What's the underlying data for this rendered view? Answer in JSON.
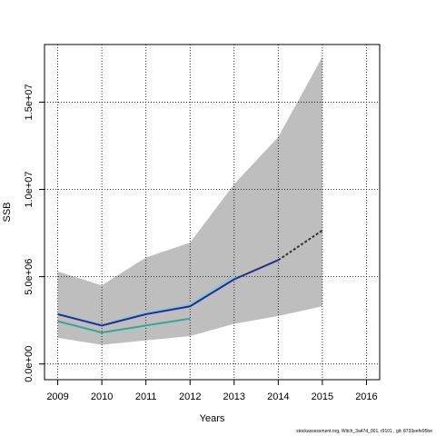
{
  "chart_data": {
    "type": "line",
    "title": "",
    "xlabel": "Years",
    "ylabel": "SSB",
    "xlim": [
      2008.7,
      2016.3
    ],
    "ylim": [
      -900000,
      18300000
    ],
    "x_ticks": [
      2009,
      2010,
      2011,
      2012,
      2013,
      2014,
      2015,
      2016
    ],
    "x_tick_labels": [
      "2009",
      "2010",
      "2011",
      "2012",
      "2013",
      "2014",
      "2015",
      "2016"
    ],
    "y_ticks": [
      0,
      5000000,
      10000000,
      15000000
    ],
    "y_tick_labels": [
      "0.0e+00",
      "5.0e+06",
      "1.0e+07",
      "1.5e+07"
    ],
    "grid": true,
    "colors": {
      "band": "#bebebe",
      "light_blue": "#7ec8e3",
      "green": "#3aa597",
      "navy": "#2a2a8a",
      "forecast": "#333333"
    },
    "band": {
      "x": [
        2009,
        2010,
        2011,
        2012,
        2013,
        2014,
        2015
      ],
      "upper": [
        5300000,
        4500000,
        6100000,
        6950000,
        10300000,
        13000000,
        17600000
      ],
      "lower": [
        1500000,
        1100000,
        1350000,
        1600000,
        2300000,
        2750000,
        3300000
      ]
    },
    "series": [
      {
        "x": [
          2009,
          2010,
          2011,
          2012,
          2013
        ],
        "values": [
          2900000,
          2250000,
          2950000,
          3400000,
          5050000
        ],
        "color_key": "light_blue",
        "dashed": false,
        "width": 2
      },
      {
        "x": [
          2009,
          2010,
          2011,
          2012
        ],
        "values": [
          2450000,
          1800000,
          2200000,
          2600000
        ],
        "color_key": "green",
        "dashed": false,
        "width": 2
      },
      {
        "x": [
          2009,
          2010,
          2011,
          2012,
          2013,
          2014
        ],
        "values": [
          2850000,
          2200000,
          2850000,
          3300000,
          4850000,
          5950000
        ],
        "color_key": "navy",
        "dashed": false,
        "width": 2
      },
      {
        "x": [
          2014,
          2015
        ],
        "values": [
          5950000,
          7650000
        ],
        "color_key": "forecast",
        "dashed": true,
        "width": 2
      }
    ]
  },
  "footer": "stockassessment.org, Witch_3a47d_001, r9101 , git: 8733eefe95be"
}
